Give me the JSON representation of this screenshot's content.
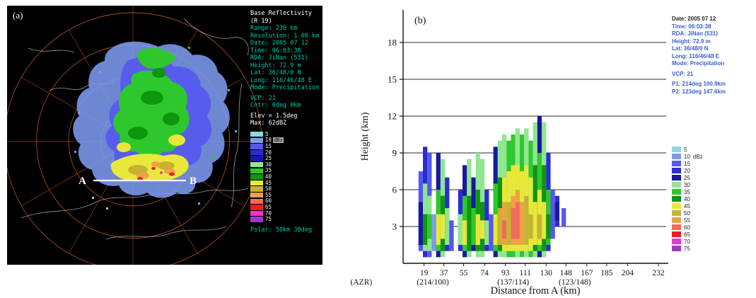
{
  "palette": {
    "unit": "dBz",
    "levels": [
      {
        "v": 5,
        "c": "#8ad8e8"
      },
      {
        "v": 10,
        "c": "#7d9af0"
      },
      {
        "v": 15,
        "c": "#5558ee"
      },
      {
        "v": 20,
        "c": "#2b2bd6"
      },
      {
        "v": 25,
        "c": "#1818a0"
      },
      {
        "v": 30,
        "c": "#90e690"
      },
      {
        "v": 35,
        "c": "#2ec82e"
      },
      {
        "v": 40,
        "c": "#0e960e"
      },
      {
        "v": 45,
        "c": "#e8e83a"
      },
      {
        "v": 50,
        "c": "#c8b232"
      },
      {
        "v": 55,
        "c": "#f0a048"
      },
      {
        "v": 60,
        "c": "#f06a5a"
      },
      {
        "v": 65,
        "c": "#e62020"
      },
      {
        "v": 70,
        "c": "#e63ac8"
      },
      {
        "v": 75,
        "c": "#9a3ac8"
      }
    ]
  },
  "panel_a": {
    "label": "(a)",
    "info": {
      "title": "Base Reflectivity",
      "product": "(R 19)",
      "lines": [
        "Range: 230 km",
        "Resolution: 1.00 km",
        "Date: 2005 07 12",
        "Time: 06:03:38",
        "RDA: JiNan (531)",
        "Height: 72.9 m",
        "Lat: 36/48/0 N",
        "Long: 116/46/48 E",
        "Mode: Precipitation"
      ],
      "vcp_lines": [
        "VCP: 21",
        "Cntr: 0deg  0km"
      ],
      "elev": "Elev = 1.5deg",
      "max": "Max: 62dBZ",
      "footer": "Polar: 50km 30deg"
    }
  },
  "panel_b": {
    "label": "(b)",
    "info_lines": [
      "Date: 2005 07 12",
      "Time: 06:03:38",
      "RDA: JiNan (531)",
      "Height: 72.9 m",
      "Lat: 36/48/0 N",
      "Long: 116/46/48 E",
      "Mode: Precipitation",
      "",
      "VCP: 21",
      "",
      "P1: 214deg 100.9km",
      "P2: 123deg 147.6km"
    ]
  },
  "chart_data": [
    {
      "id": "a",
      "type": "heatmap",
      "subtype": "radar_ppi_base_reflectivity",
      "title": "Base Reflectivity (R 19)",
      "range_km": 230,
      "resolution_km": 1.0,
      "elevation_deg": 1.5,
      "max_dbz": 62,
      "ring_spacing_km": 50,
      "spoke_spacing_deg": 30,
      "cross_section": {
        "from": "A",
        "to": "B"
      },
      "legend_values": [
        5,
        10,
        15,
        20,
        25,
        30,
        35,
        40,
        45,
        50,
        55,
        60,
        65,
        70,
        75
      ]
    },
    {
      "id": "b",
      "type": "heatmap",
      "title": "Vertical cross-section from A to B",
      "xlabel": "Distance from A  (km)",
      "ylabel": "Height  (km)",
      "xlim": [
        0,
        250
      ],
      "ylim": [
        0,
        21
      ],
      "xticks": [
        19,
        37,
        55,
        74,
        93,
        111,
        130,
        148,
        167,
        185,
        204,
        232
      ],
      "yticks": [
        3,
        6,
        9,
        12,
        15,
        18
      ],
      "x_annotations": [
        {
          "text": "(AZR)",
          "km": -38
        },
        {
          "text": "(214/100)",
          "km": 27
        },
        {
          "text": "(137/114)",
          "km": 100
        },
        {
          "text": "(123/148)",
          "km": 156
        }
      ],
      "grid": true,
      "columns": [
        {
          "x0": 14,
          "x1": 18,
          "cells": [
            [
              1,
              7.5,
              15
            ],
            [
              1.5,
              5,
              25
            ]
          ]
        },
        {
          "x0": 18,
          "x1": 22,
          "cells": [
            [
              0.5,
              9.5,
              20
            ],
            [
              1,
              6.5,
              30
            ],
            [
              1.5,
              4,
              40
            ]
          ]
        },
        {
          "x0": 22,
          "x1": 26,
          "cells": [
            [
              0.5,
              9,
              15
            ],
            [
              1,
              5.5,
              30
            ],
            [
              2,
              4,
              35
            ]
          ]
        },
        {
          "x0": 26,
          "x1": 30,
          "cells": [
            [
              1,
              4,
              10
            ]
          ]
        },
        {
          "x0": 30,
          "x1": 34,
          "cells": [
            [
              0.5,
              9,
              25
            ],
            [
              1,
              6,
              35
            ],
            [
              1.5,
              4,
              45
            ]
          ]
        },
        {
          "x0": 34,
          "x1": 38,
          "cells": [
            [
              0.5,
              8.5,
              30
            ],
            [
              1,
              5.5,
              40
            ],
            [
              2,
              4,
              45
            ]
          ]
        },
        {
          "x0": 38,
          "x1": 42,
          "cells": [
            [
              1,
              7,
              20
            ],
            [
              1.5,
              4.5,
              30
            ]
          ]
        },
        {
          "x0": 42,
          "x1": 46,
          "cells": [
            [
              1,
              3.5,
              15
            ]
          ]
        },
        {
          "x0": 50,
          "x1": 54,
          "cells": [
            [
              1,
              6,
              20
            ],
            [
              1.5,
              4,
              30
            ]
          ]
        },
        {
          "x0": 54,
          "x1": 58,
          "cells": [
            [
              0.5,
              8,
              25
            ],
            [
              1,
              5.5,
              35
            ],
            [
              1.5,
              3.5,
              45
            ]
          ]
        },
        {
          "x0": 58,
          "x1": 62,
          "cells": [
            [
              0.5,
              8.5,
              30
            ],
            [
              1,
              5.5,
              40
            ]
          ]
        },
        {
          "x0": 62,
          "x1": 66,
          "cells": [
            [
              1,
              7,
              25
            ],
            [
              1.5,
              4.5,
              35
            ]
          ]
        },
        {
          "x0": 66,
          "x1": 70,
          "cells": [
            [
              0.5,
              9,
              30
            ],
            [
              1,
              6,
              40
            ],
            [
              1.5,
              4,
              45
            ]
          ]
        },
        {
          "x0": 70,
          "x1": 74,
          "cells": [
            [
              0.5,
              8.5,
              30
            ],
            [
              1,
              5,
              40
            ],
            [
              2,
              3.5,
              45
            ]
          ]
        },
        {
          "x0": 74,
          "x1": 78,
          "cells": [
            [
              1,
              6,
              20
            ],
            [
              1.5,
              3.5,
              30
            ]
          ]
        },
        {
          "x0": 78,
          "x1": 82,
          "cells": [
            [
              1,
              4,
              15
            ]
          ]
        },
        {
          "x0": 82,
          "x1": 86,
          "cells": [
            [
              0.5,
              9.5,
              25
            ],
            [
              1,
              6.5,
              35
            ],
            [
              1.5,
              4,
              45
            ]
          ]
        },
        {
          "x0": 86,
          "x1": 90,
          "cells": [
            [
              0.5,
              10,
              30
            ],
            [
              1,
              7,
              40
            ],
            [
              1.5,
              4.5,
              50
            ]
          ]
        },
        {
          "x0": 90,
          "x1": 94,
          "cells": [
            [
              0.5,
              10.5,
              30
            ],
            [
              1,
              7,
              45
            ],
            [
              1.5,
              5,
              55
            ],
            [
              2,
              3.5,
              60
            ]
          ]
        },
        {
          "x0": 94,
          "x1": 98,
          "cells": [
            [
              0.5,
              10,
              35
            ],
            [
              1,
              7.5,
              45
            ],
            [
              1.5,
              5,
              50
            ]
          ]
        },
        {
          "x0": 98,
          "x1": 102,
          "cells": [
            [
              0.5,
              10.5,
              35
            ],
            [
              1,
              8,
              45
            ],
            [
              1.5,
              5.5,
              55
            ],
            [
              2,
              4.5,
              60
            ]
          ]
        },
        {
          "x0": 102,
          "x1": 106,
          "cells": [
            [
              0.5,
              11,
              30
            ],
            [
              1,
              8,
              45
            ],
            [
              1.5,
              6,
              55
            ],
            [
              2,
              5,
              60
            ]
          ]
        },
        {
          "x0": 106,
          "x1": 110,
          "cells": [
            [
              0.5,
              10.5,
              35
            ],
            [
              1,
              7.5,
              45
            ],
            [
              1.5,
              5,
              55
            ]
          ]
        },
        {
          "x0": 110,
          "x1": 114,
          "cells": [
            [
              0.5,
              11,
              30
            ],
            [
              1,
              8,
              45
            ],
            [
              1.5,
              5.5,
              50
            ]
          ]
        },
        {
          "x0": 114,
          "x1": 118,
          "cells": [
            [
              0.5,
              10,
              35
            ],
            [
              1,
              7,
              45
            ],
            [
              2,
              4,
              50
            ]
          ]
        },
        {
          "x0": 118,
          "x1": 122,
          "cells": [
            [
              0.5,
              11.5,
              30
            ],
            [
              1,
              8,
              40
            ],
            [
              1.5,
              5,
              45
            ]
          ]
        },
        {
          "x0": 122,
          "x1": 126,
          "cells": [
            [
              0.5,
              12,
              25
            ],
            [
              1,
              9,
              35
            ],
            [
              1.5,
              6,
              45
            ],
            [
              2,
              4,
              50
            ]
          ]
        },
        {
          "x0": 126,
          "x1": 130,
          "cells": [
            [
              0.5,
              11.5,
              30
            ],
            [
              1,
              8,
              40
            ],
            [
              2,
              5,
              45
            ]
          ]
        },
        {
          "x0": 130,
          "x1": 134,
          "cells": [
            [
              1,
              9,
              20
            ],
            [
              1.5,
              6,
              35
            ],
            [
              2,
              4,
              40
            ]
          ]
        },
        {
          "x0": 134,
          "x1": 138,
          "cells": [
            [
              2,
              6,
              15
            ]
          ]
        },
        {
          "x0": 138,
          "x1": 142,
          "cells": [
            [
              3,
              5.5,
              20
            ],
            [
              3.5,
              5,
              25
            ]
          ]
        },
        {
          "x0": 144,
          "x1": 148,
          "cells": [
            [
              3,
              4.5,
              15
            ]
          ]
        }
      ]
    }
  ]
}
